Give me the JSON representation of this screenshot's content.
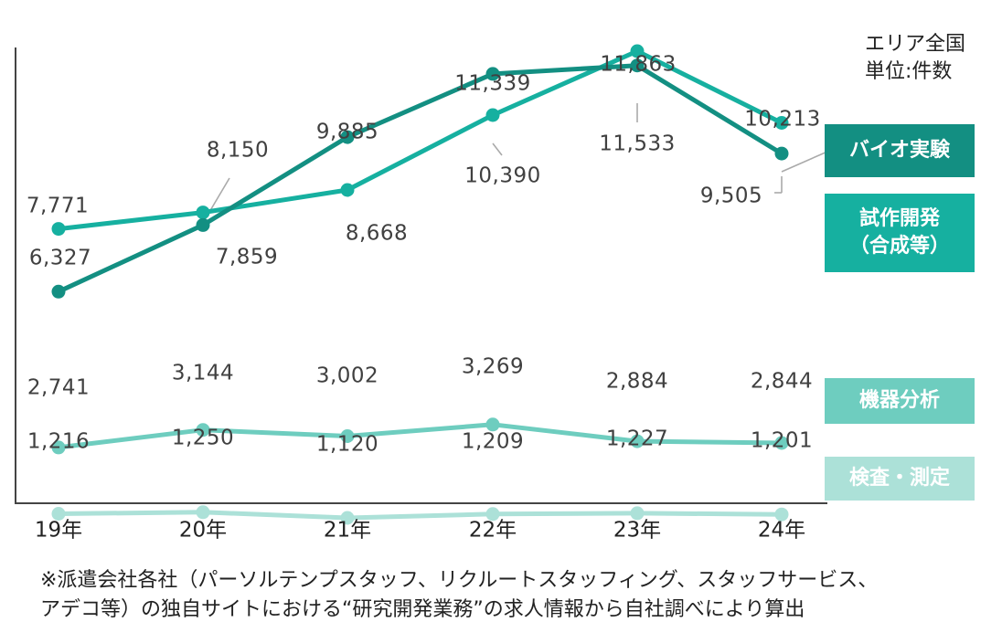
{
  "chart_data": {
    "type": "line",
    "categories": [
      "19年",
      "20年",
      "21年",
      "22年",
      "23年",
      "24年"
    ],
    "ylim": [
      0,
      12500
    ],
    "grid": false,
    "legend_placement": "right",
    "series": [
      {
        "name": "バイオ実験",
        "color": "#138f82",
        "values": [
          6327,
          7859,
          9885,
          11339,
          11533,
          9505
        ],
        "labels": [
          "6,327",
          "7,859",
          "9,885",
          "11,339",
          "11,533",
          "9,505"
        ]
      },
      {
        "name": "試作開発（合成等）",
        "color": "#16b0a0",
        "values": [
          7771,
          8150,
          8668,
          10390,
          11863,
          10213
        ],
        "labels": [
          "7,771",
          "8,150",
          "8,668",
          "10,390",
          "11,863",
          "10,213"
        ]
      },
      {
        "name": "機器分析",
        "color": "#6ecdbf",
        "values": [
          2741,
          3144,
          3002,
          3269,
          2884,
          2844
        ],
        "labels": [
          "2,741",
          "3,144",
          "3,002",
          "3,269",
          "2,884",
          "2,844"
        ]
      },
      {
        "name": "検査・測定",
        "color": "#ace1d8",
        "values": [
          1216,
          1250,
          1120,
          1209,
          1227,
          1201
        ],
        "labels": [
          "1,216",
          "1,250",
          "1,120",
          "1,209",
          "1,227",
          "1,201"
        ]
      }
    ]
  },
  "unit_note": {
    "line1": "エリア全国",
    "line2": "単位:件数"
  },
  "legend": {
    "bio": "バイオ実験",
    "proto_line1": "試作開発",
    "proto_line2": "（合成等）",
    "analysis": "機器分析",
    "inspection": "検査・測定"
  },
  "footnote": {
    "line1": "※派遣会社各社（パーソルテンプスタッフ、リクルートスタッフィング、スタッフサービス、",
    "line2": "アデコ等）の独自サイトにおける“研究開発業務”の求人情報から自社調べにより算出"
  }
}
